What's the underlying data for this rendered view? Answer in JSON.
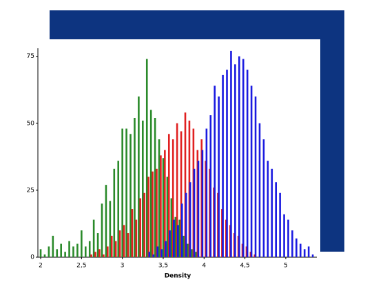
{
  "chart_data": {
    "type": "bar",
    "x_label": "Density",
    "xlim": [
      1.966,
      5.38
    ],
    "ylim": [
      0,
      78
    ],
    "xticks": [
      2,
      {
        "value": 2.5,
        "label": "2,5"
      },
      3,
      {
        "value": 3.5,
        "label": "3,5"
      },
      4,
      {
        "value": 4.5,
        "label": "4,5"
      },
      5
    ],
    "yticks": [
      0,
      25,
      50,
      75
    ],
    "series": [
      {
        "color": "#2a8a2a",
        "x": [
          2.0,
          2.05,
          2.1,
          2.15,
          2.2,
          2.25,
          2.3,
          2.35,
          2.4,
          2.45,
          2.5,
          2.55,
          2.6,
          2.65,
          2.7,
          2.75,
          2.8,
          2.85,
          2.9,
          2.95,
          3.0,
          3.05,
          3.1,
          3.15,
          3.2,
          3.25,
          3.3,
          3.35,
          3.4,
          3.45,
          3.5,
          3.55,
          3.6,
          3.65,
          3.7,
          3.75,
          3.8,
          3.85,
          3.9
        ],
        "values": [
          3,
          1,
          4,
          8,
          3,
          5,
          2,
          6,
          4,
          5,
          10,
          4,
          6,
          14,
          9,
          20,
          27,
          21,
          33,
          36,
          48,
          48,
          46,
          52,
          60,
          51,
          74,
          55,
          52,
          44,
          37,
          30,
          22,
          15,
          14,
          8,
          5,
          3,
          2
        ]
      },
      {
        "color": "#e02020",
        "x": [
          2.62,
          2.67,
          2.72,
          2.77,
          2.82,
          2.87,
          2.92,
          2.97,
          3.02,
          3.07,
          3.12,
          3.17,
          3.22,
          3.27,
          3.32,
          3.37,
          3.42,
          3.47,
          3.52,
          3.57,
          3.62,
          3.67,
          3.72,
          3.77,
          3.82,
          3.87,
          3.92,
          3.97,
          4.02,
          4.07,
          4.12,
          4.17,
          4.22,
          4.27,
          4.32,
          4.37,
          4.42,
          4.47,
          4.52,
          4.57,
          4.62
        ],
        "values": [
          1,
          2,
          3,
          1,
          4,
          8,
          6,
          10,
          12,
          9,
          18,
          14,
          22,
          24,
          30,
          32,
          33,
          38,
          40,
          46,
          44,
          50,
          47,
          54,
          51,
          48,
          40,
          44,
          36,
          33,
          26,
          24,
          18,
          14,
          12,
          9,
          8,
          5,
          4,
          2,
          1
        ]
      },
      {
        "color": "#1a1ae0",
        "x": [
          3.33,
          3.38,
          3.43,
          3.48,
          3.53,
          3.58,
          3.63,
          3.68,
          3.73,
          3.78,
          3.83,
          3.88,
          3.93,
          3.98,
          4.03,
          4.08,
          4.13,
          4.18,
          4.23,
          4.28,
          4.33,
          4.38,
          4.43,
          4.48,
          4.53,
          4.58,
          4.63,
          4.68,
          4.73,
          4.78,
          4.83,
          4.88,
          4.93,
          4.98,
          5.03,
          5.08,
          5.13,
          5.18,
          5.23,
          5.28,
          5.33
        ],
        "values": [
          2,
          1,
          4,
          3,
          6,
          10,
          14,
          12,
          20,
          24,
          28,
          33,
          36,
          40,
          48,
          53,
          64,
          60,
          68,
          70,
          77,
          72,
          75,
          74,
          70,
          64,
          60,
          50,
          44,
          36,
          33,
          28,
          24,
          16,
          14,
          10,
          7,
          5,
          3,
          4,
          1
        ]
      }
    ]
  }
}
